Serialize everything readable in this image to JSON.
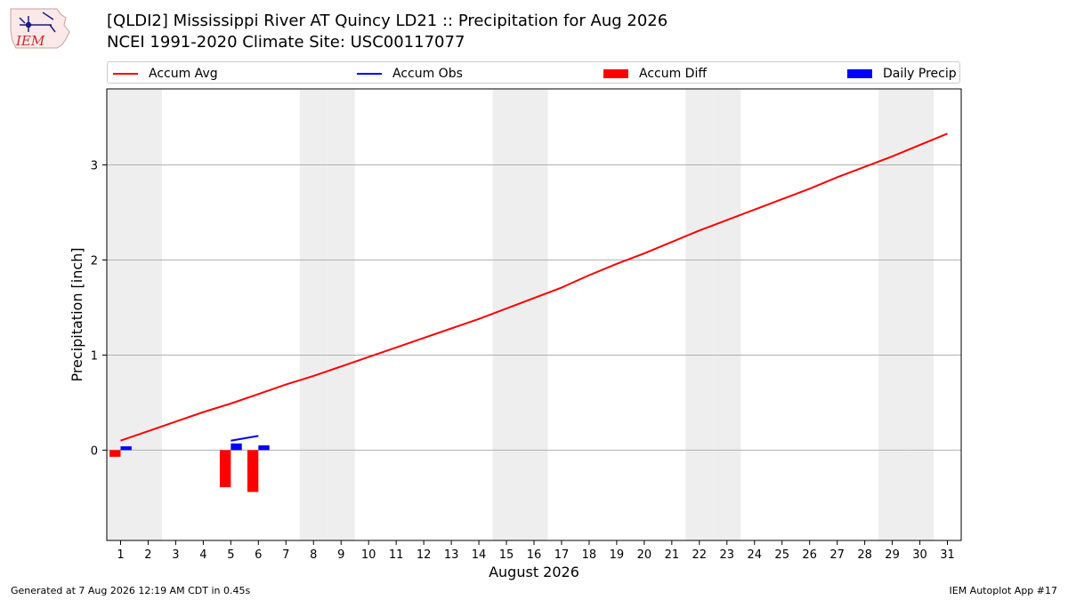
{
  "title": {
    "line1": "[QLDI2] Mississippi River  AT Quincy LD21 :: Precipitation for Aug 2026",
    "line2": "NCEI 1991-2020 Climate Site: USC00117077"
  },
  "logo": {
    "text": "IEM",
    "icon": "iem-iowa-weather-logo"
  },
  "legend": {
    "placement": "top",
    "items": [
      {
        "label": "Accum Avg",
        "kind": "line",
        "color": "#ff0000"
      },
      {
        "label": "Accum Obs",
        "kind": "line",
        "color": "#0000ff"
      },
      {
        "label": "Accum Diff",
        "kind": "box",
        "color": "#ff0000"
      },
      {
        "label": "Daily Precip",
        "kind": "box",
        "color": "#0000ff"
      }
    ]
  },
  "chart_data": {
    "type": "bar",
    "xlabel": "August 2026",
    "ylabel": "Precipitation [inch]",
    "xlim": [
      0.5,
      31.5
    ],
    "ylim": [
      -0.95,
      3.8
    ],
    "yticks": [
      0,
      1,
      2,
      3
    ],
    "x": [
      1,
      2,
      3,
      4,
      5,
      6,
      7,
      8,
      9,
      10,
      11,
      12,
      13,
      14,
      15,
      16,
      17,
      18,
      19,
      20,
      21,
      22,
      23,
      24,
      25,
      26,
      27,
      28,
      29,
      30,
      31
    ],
    "weekend_days": [
      1,
      2,
      8,
      9,
      15,
      16,
      22,
      23,
      29,
      30
    ],
    "grid": "horizontal",
    "series": [
      {
        "name": "Accum Avg",
        "type": "line",
        "color": "#ff0000",
        "x": [
          1,
          2,
          3,
          4,
          5,
          6,
          7,
          8,
          9,
          10,
          11,
          12,
          13,
          14,
          15,
          16,
          17,
          18,
          19,
          20,
          21,
          22,
          23,
          24,
          25,
          26,
          27,
          28,
          29,
          30,
          31
        ],
        "values": [
          0.1,
          0.2,
          0.3,
          0.4,
          0.49,
          0.59,
          0.69,
          0.78,
          0.88,
          0.98,
          1.08,
          1.18,
          1.28,
          1.38,
          1.49,
          1.6,
          1.71,
          1.84,
          1.96,
          2.07,
          2.19,
          2.31,
          2.42,
          2.53,
          2.64,
          2.75,
          2.87,
          2.98,
          3.09,
          3.21,
          3.33
        ]
      },
      {
        "name": "Accum Obs",
        "type": "line",
        "color": "#0000ff",
        "x": [
          5,
          6
        ],
        "values": [
          0.1,
          0.15
        ]
      },
      {
        "name": "Accum Diff",
        "type": "bar",
        "color": "#ff0000",
        "offset": -0.2,
        "x": [
          1,
          5,
          6
        ],
        "values": [
          -0.07,
          -0.39,
          -0.44
        ]
      },
      {
        "name": "Daily Precip",
        "type": "bar",
        "color": "#0000ff",
        "offset": 0.2,
        "x": [
          1,
          5,
          6
        ],
        "values": [
          0.04,
          0.07,
          0.05
        ]
      }
    ]
  },
  "footer": {
    "left": "Generated at 7 Aug 2026 12:19 AM CDT in 0.45s",
    "right": "IEM Autoplot App #17"
  }
}
